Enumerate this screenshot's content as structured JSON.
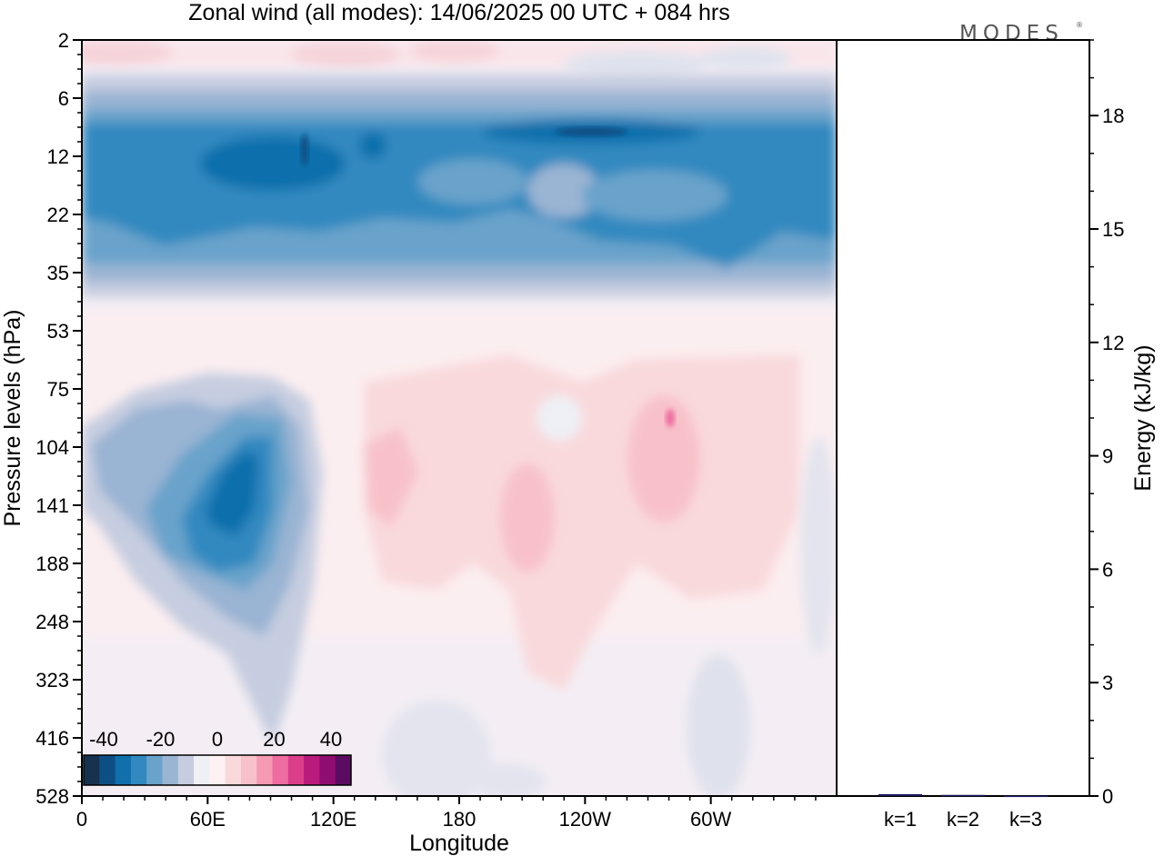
{
  "chart_data": [
    {
      "type": "heatmap",
      "title": "Zonal wind (all modes):  14/06/2025  00 UTC  + 084 hrs",
      "xlabel": "Longitude",
      "ylabel": "Pressure levels (hPa)",
      "x_ticks": [
        {
          "lon": 0,
          "label": "0"
        },
        {
          "lon": 60,
          "label": "60E"
        },
        {
          "lon": 120,
          "label": "120E"
        },
        {
          "lon": 180,
          "label": "180"
        },
        {
          "lon": 240,
          "label": "120W"
        },
        {
          "lon": 300,
          "label": "60W"
        }
      ],
      "xlim": [
        0,
        360
      ],
      "y_levels": [
        "2",
        "6",
        "12",
        "22",
        "35",
        "53",
        "75",
        "104",
        "141",
        "188",
        "248",
        "323",
        "416",
        "528"
      ],
      "colorbar": {
        "tick_labels": [
          "-40",
          "-20",
          "0",
          "20",
          "40"
        ],
        "colors": [
          "#16324f",
          "#0d4f84",
          "#1170ac",
          "#3189c0",
          "#69a3cb",
          "#9ab4d3",
          "#c6cde0",
          "#eef0f6",
          "#fdf1f3",
          "#f9d9dc",
          "#f8c1c9",
          "#f59ab2",
          "#ee6ca0",
          "#dc3e8c",
          "#b91b7d",
          "#8f0d70",
          "#5c0b62"
        ]
      },
      "features": [
        {
          "name": "stratospheric easterly band",
          "pressure_range": [
            8,
            30
          ],
          "min_value": -40
        },
        {
          "name": "upper-tropospheric easterly jet core",
          "lon_range": [
            40,
            110
          ],
          "pressure_range": [
            80,
            250
          ],
          "min_value": -35
        },
        {
          "name": "westerly region",
          "lon_range": [
            140,
            360
          ],
          "pressure_range": [
            60,
            330
          ],
          "max_value": 15
        }
      ]
    },
    {
      "type": "bar",
      "categories": [
        "k=1",
        "k=2",
        "k=3"
      ],
      "values": [
        0.05,
        0.03,
        0.01
      ],
      "ylabel": "Energy (kJ/kg)",
      "ylim": [
        0,
        20
      ],
      "y_ticks": [
        "0",
        "3",
        "6",
        "9",
        "12",
        "15",
        "18"
      ],
      "bar_color": "#1a1a60"
    }
  ],
  "logo": "MODES"
}
